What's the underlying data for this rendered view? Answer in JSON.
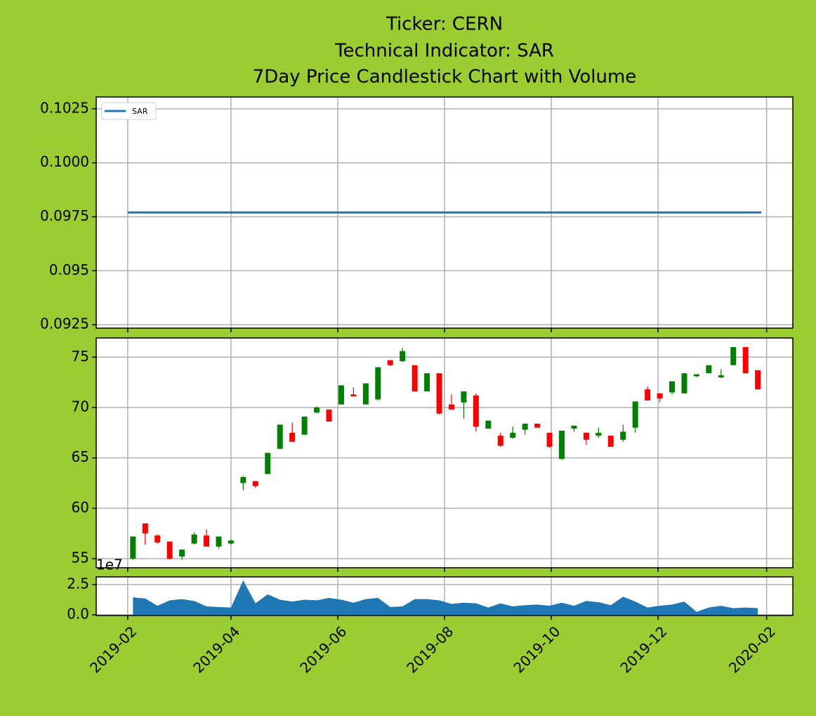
{
  "title_lines": [
    "Ticker: CERN",
    "Technical Indicator: SAR",
    "7Day Price Candlestick Chart with Volume"
  ],
  "chart_data": [
    {
      "type": "line",
      "x": [
        "2019-02-01",
        "2020-01-29"
      ],
      "series": [
        {
          "name": "SAR",
          "color": "#1f77b4",
          "values": [
            0.0977,
            0.0977
          ]
        }
      ],
      "xlim": [
        "2019-01-14",
        "2020-02-16"
      ],
      "xticks": [
        "2019-02",
        "2019-04",
        "2019-06",
        "2019-08",
        "2019-10",
        "2019-12",
        "2020-02"
      ],
      "ylim": [
        0.09234,
        0.10305
      ],
      "yticks": [
        0.0925,
        0.095,
        0.0975,
        {
          "value": 0.1,
          "label": "0.1000"
        },
        0.1025
      ],
      "grid": true,
      "legend": "upper left"
    },
    {
      "type": "candlestick",
      "x": [
        "2019-02-04",
        "2019-02-11",
        "2019-02-18",
        "2019-02-25",
        "2019-03-04",
        "2019-03-11",
        "2019-03-18",
        "2019-03-25",
        "2019-04-01",
        "2019-04-08",
        "2019-04-15",
        "2019-04-22",
        "2019-04-29",
        "2019-05-06",
        "2019-05-13",
        "2019-05-20",
        "2019-05-27",
        "2019-06-03",
        "2019-06-10",
        "2019-06-17",
        "2019-06-24",
        "2019-07-01",
        "2019-07-08",
        "2019-07-15",
        "2019-07-22",
        "2019-07-29",
        "2019-08-05",
        "2019-08-12",
        "2019-08-19",
        "2019-08-26",
        "2019-09-02",
        "2019-09-09",
        "2019-09-16",
        "2019-09-23",
        "2019-09-30",
        "2019-10-07",
        "2019-10-14",
        "2019-10-21",
        "2019-10-28",
        "2019-11-04",
        "2019-11-11",
        "2019-11-18",
        "2019-11-25",
        "2019-12-02",
        "2019-12-09",
        "2019-12-16",
        "2019-12-23",
        "2019-12-30",
        "2020-01-06",
        "2020-01-13",
        "2020-01-20",
        "2020-01-27"
      ],
      "open": [
        55.0,
        58.5,
        57.3,
        56.7,
        55.2,
        56.5,
        57.3,
        56.2,
        56.5,
        62.5,
        62.7,
        63.4,
        65.9,
        67.5,
        67.3,
        69.5,
        69.8,
        70.3,
        71.3,
        70.3,
        70.8,
        74.7,
        74.6,
        74.2,
        71.6,
        73.4,
        70.3,
        70.5,
        71.2,
        67.9,
        67.2,
        67.0,
        67.8,
        68.4,
        67.5,
        64.9,
        67.9,
        67.5,
        67.2,
        67.2,
        66.8,
        68.0,
        71.8,
        71.4,
        71.5,
        71.4,
        73.1,
        73.4,
        73.0,
        74.2,
        76.0,
        73.7
      ],
      "high": [
        57.2,
        58.5,
        57.4,
        56.7,
        55.9,
        57.6,
        57.9,
        57.2,
        56.9,
        63.2,
        62.7,
        65.5,
        68.3,
        68.5,
        69.1,
        70.1,
        69.8,
        72.2,
        72.0,
        72.4,
        74.0,
        74.7,
        75.9,
        74.2,
        73.4,
        73.4,
        71.3,
        71.6,
        71.4,
        68.7,
        67.5,
        68.1,
        68.4,
        68.4,
        67.5,
        67.7,
        68.2,
        67.5,
        68.0,
        67.2,
        68.3,
        70.6,
        72.1,
        71.4,
        72.6,
        73.4,
        73.3,
        74.2,
        73.8,
        76.0,
        76.0,
        73.7
      ],
      "low": [
        54.9,
        56.4,
        56.5,
        54.9,
        54.9,
        56.4,
        56.2,
        56.0,
        56.4,
        61.8,
        62.0,
        63.4,
        65.9,
        66.6,
        67.3,
        69.4,
        68.6,
        70.3,
        71.1,
        70.3,
        70.7,
        74.1,
        74.5,
        71.6,
        71.6,
        69.3,
        69.8,
        68.9,
        67.6,
        67.9,
        66.1,
        66.9,
        67.3,
        68.0,
        66.0,
        64.8,
        67.6,
        66.3,
        67.0,
        66.1,
        66.6,
        67.5,
        70.7,
        70.5,
        71.3,
        71.4,
        73.0,
        73.4,
        72.9,
        74.2,
        73.4,
        71.8
      ],
      "close": [
        57.2,
        57.5,
        56.6,
        55.0,
        55.9,
        57.4,
        56.2,
        57.2,
        56.8,
        63.1,
        62.2,
        65.5,
        68.3,
        66.6,
        69.1,
        70.0,
        68.6,
        72.2,
        71.1,
        72.4,
        74.0,
        74.2,
        75.6,
        71.6,
        73.4,
        69.4,
        69.8,
        71.6,
        68.1,
        68.7,
        66.2,
        67.5,
        68.4,
        68.0,
        66.1,
        67.7,
        68.2,
        66.8,
        67.5,
        66.1,
        67.6,
        70.6,
        70.7,
        70.9,
        72.6,
        73.4,
        73.3,
        74.2,
        73.2,
        76.0,
        73.4,
        71.8
      ],
      "up_color": "green",
      "down_color": "red",
      "xlim": [
        "2019-01-14",
        "2020-02-16"
      ],
      "xticks": [
        "2019-02",
        "2019-04",
        "2019-06",
        "2019-08",
        "2019-10",
        "2019-12",
        "2020-02"
      ],
      "ylim": [
        54.1,
        76.9
      ],
      "yticks": [
        55,
        60,
        65,
        70,
        75
      ],
      "grid": true
    },
    {
      "type": "area",
      "x": [
        "2019-02-04",
        "2019-02-11",
        "2019-02-18",
        "2019-02-25",
        "2019-03-04",
        "2019-03-11",
        "2019-03-18",
        "2019-03-25",
        "2019-04-01",
        "2019-04-08",
        "2019-04-15",
        "2019-04-22",
        "2019-04-29",
        "2019-05-06",
        "2019-05-13",
        "2019-05-20",
        "2019-05-27",
        "2019-06-03",
        "2019-06-10",
        "2019-06-17",
        "2019-06-24",
        "2019-07-01",
        "2019-07-08",
        "2019-07-15",
        "2019-07-22",
        "2019-07-29",
        "2019-08-05",
        "2019-08-12",
        "2019-08-19",
        "2019-08-26",
        "2019-09-02",
        "2019-09-09",
        "2019-09-16",
        "2019-09-23",
        "2019-09-30",
        "2019-10-07",
        "2019-10-14",
        "2019-10-21",
        "2019-10-28",
        "2019-11-04",
        "2019-11-11",
        "2019-11-18",
        "2019-11-25",
        "2019-12-02",
        "2019-12-09",
        "2019-12-16",
        "2019-12-23",
        "2019-12-30",
        "2020-01-06",
        "2020-01-13",
        "2020-01-20",
        "2020-01-27"
      ],
      "values": [
        1.45,
        1.35,
        0.75,
        1.2,
        1.3,
        1.15,
        0.7,
        0.65,
        0.6,
        2.85,
        0.95,
        1.7,
        1.25,
        1.1,
        1.25,
        1.2,
        1.4,
        1.25,
        1.0,
        1.3,
        1.4,
        0.65,
        0.7,
        1.3,
        1.3,
        1.2,
        0.9,
        1.0,
        0.95,
        0.6,
        0.95,
        0.7,
        0.8,
        0.85,
        0.75,
        1.0,
        0.75,
        1.15,
        1.05,
        0.8,
        1.5,
        1.1,
        0.6,
        0.75,
        0.85,
        1.1,
        0.25,
        0.6,
        0.75,
        0.55,
        0.6,
        0.55
      ],
      "color": "#1f77b4",
      "y_offset_label": "1e7",
      "xlim": [
        "2019-01-14",
        "2020-02-16"
      ],
      "xticks": [
        "2019-02",
        "2019-04",
        "2019-06",
        "2019-08",
        "2019-10",
        "2019-12",
        "2020-02"
      ],
      "ylim": [
        -0.058,
        3.14
      ],
      "yticks": [
        {
          "value": 0,
          "label": "0.0"
        },
        2.5
      ],
      "grid": true
    }
  ]
}
